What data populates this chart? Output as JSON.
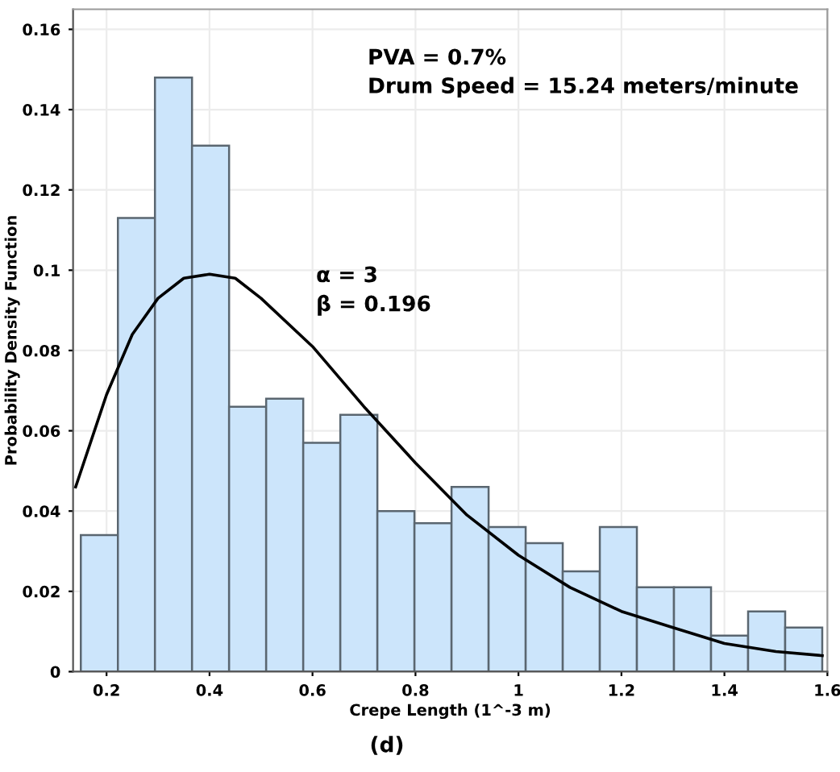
{
  "chart_data": {
    "type": "histogram",
    "xlabel": "Crepe Length (1^-3 m)",
    "ylabel": "Probability Density Function",
    "xlim": [
      0.135,
      1.6
    ],
    "xticks": [
      0.2,
      0.4,
      0.6,
      0.8,
      1,
      1.2,
      1.4,
      1.6
    ],
    "ylim": [
      0,
      0.165
    ],
    "yticks": [
      0,
      0.02,
      0.04,
      0.06,
      0.08,
      0.1,
      0.12,
      0.14,
      0.16
    ],
    "grid": true,
    "series": [
      {
        "color": "#cce5fb",
        "bins": [
          0.15,
          0.222,
          0.294,
          0.366,
          0.438,
          0.51,
          0.582,
          0.654,
          0.726,
          0.798,
          0.87,
          0.942,
          1.014,
          1.086,
          1.158,
          1.23,
          1.302,
          1.374,
          1.446,
          1.518,
          1.59
        ],
        "values": [
          0.034,
          0.113,
          0.148,
          0.131,
          0.066,
          0.068,
          0.057,
          0.064,
          0.04,
          0.037,
          0.046,
          0.036,
          0.032,
          0.025,
          0.036,
          0.021,
          0.021,
          0.009,
          0.015,
          0.011
        ]
      },
      {
        "type": "line",
        "color": "#000000",
        "x": [
          0.14,
          0.2,
          0.25,
          0.3,
          0.35,
          0.4,
          0.45,
          0.5,
          0.6,
          0.7,
          0.8,
          0.9,
          1.0,
          1.1,
          1.2,
          1.3,
          1.4,
          1.5,
          1.59
        ],
        "values": [
          0.046,
          0.069,
          0.084,
          0.093,
          0.098,
          0.099,
          0.098,
          0.093,
          0.081,
          0.066,
          0.052,
          0.039,
          0.029,
          0.021,
          0.015,
          0.011,
          0.007,
          0.005,
          0.004
        ]
      }
    ],
    "annotations": [
      "PVA = 0.7%\nDrum Speed = 15.24 meters/minute",
      "α = 3\nβ = 0.196",
      "(d)"
    ]
  }
}
